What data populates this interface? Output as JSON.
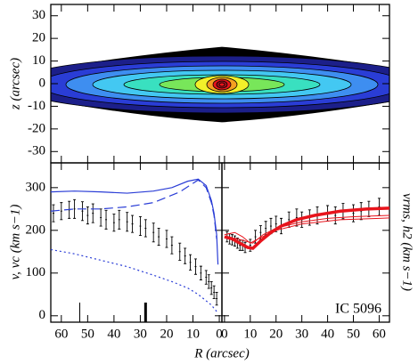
{
  "chart_data": [
    {
      "type": "image",
      "ylabel": "z (arcsec)",
      "ylim": [
        -35,
        35
      ],
      "yticks": [
        -30,
        -20,
        -10,
        0,
        10,
        20,
        30
      ]
    },
    {
      "type": "line",
      "ylabel": "v, vc (km s−1)",
      "xlabel": "R (arcsec)",
      "xlim": [
        64,
        -1
      ],
      "xticks": [
        60,
        50,
        40,
        30,
        20,
        10,
        0
      ],
      "ylim": [
        -15,
        358
      ],
      "yticks": [
        0,
        100,
        200,
        300
      ],
      "series": [
        {
          "color": "#000000",
          "style": "errorbar",
          "x": [
            63,
            60,
            57,
            55,
            52,
            50,
            48,
            45,
            43,
            40,
            38,
            35,
            33,
            30,
            28,
            25,
            23,
            20,
            18,
            15,
            13,
            11,
            9,
            7,
            5,
            4,
            3,
            2,
            1
          ],
          "values": [
            240,
            245,
            248,
            250,
            245,
            235,
            240,
            230,
            225,
            218,
            225,
            220,
            215,
            210,
            205,
            195,
            185,
            180,
            165,
            150,
            140,
            125,
            115,
            100,
            90,
            80,
            65,
            55,
            40
          ],
          "errors": [
            20,
            20,
            20,
            22,
            22,
            20,
            22,
            20,
            22,
            20,
            22,
            22,
            20,
            22,
            20,
            22,
            20,
            20,
            20,
            20,
            18,
            18,
            18,
            16,
            16,
            16,
            15,
            15,
            15
          ]
        },
        {
          "color": "#2a3dd6",
          "style": "solid",
          "x": [
            64,
            55,
            45,
            35,
            25,
            18,
            12,
            8,
            5,
            3,
            2,
            1,
            0.5
          ],
          "values": [
            290,
            292,
            290,
            287,
            292,
            300,
            315,
            320,
            305,
            270,
            240,
            190,
            120
          ]
        },
        {
          "color": "#2a3dd6",
          "style": "dashed",
          "x": [
            64,
            55,
            45,
            35,
            25,
            15,
            10,
            8,
            5,
            3,
            2,
            1
          ],
          "values": [
            245,
            250,
            250,
            255,
            265,
            290,
            310,
            318,
            300,
            265,
            235,
            180
          ]
        },
        {
          "color": "#2a3dd6",
          "style": "dotted",
          "x": [
            64,
            55,
            45,
            35,
            25,
            18,
            12,
            8,
            5,
            3,
            1
          ],
          "values": [
            155,
            145,
            130,
            115,
            95,
            80,
            65,
            50,
            35,
            25,
            10
          ]
        }
      ],
      "markers": [
        53,
        28
      ],
      "marker_styles": [
        "thin",
        "thick"
      ]
    },
    {
      "type": "line",
      "ylabel": "vrms, h2 (km s−1)",
      "annotation": "IC 5096",
      "xlim": [
        -1,
        64
      ],
      "xticks": [
        0,
        10,
        20,
        30,
        40,
        50,
        60
      ],
      "ylim": [
        -15,
        358
      ],
      "series": [
        {
          "color": "#000000",
          "style": "errorbar",
          "x": [
            1,
            2,
            3,
            4,
            5,
            6,
            7,
            8,
            10,
            12,
            14,
            16,
            18,
            20,
            22,
            25,
            28,
            30,
            33,
            36,
            40,
            43,
            46,
            50,
            53,
            56,
            60
          ],
          "values": [
            185,
            180,
            178,
            175,
            170,
            165,
            165,
            160,
            165,
            185,
            195,
            205,
            210,
            215,
            210,
            225,
            230,
            225,
            230,
            235,
            240,
            235,
            245,
            240,
            245,
            250,
            255
          ],
          "errors": [
            12,
            12,
            12,
            12,
            12,
            12,
            12,
            12,
            14,
            15,
            16,
            16,
            18,
            18,
            18,
            18,
            20,
            18,
            18,
            20,
            18,
            20,
            18,
            20,
            20,
            18,
            20
          ]
        },
        {
          "color": "#e8141c",
          "style": "thin",
          "x": [
            0,
            5,
            8,
            11,
            15,
            20,
            30,
            40,
            50,
            64
          ],
          "values": [
            185,
            180,
            175,
            170,
            190,
            205,
            220,
            228,
            232,
            235
          ]
        },
        {
          "color": "#e8141c",
          "style": "thin",
          "x": [
            0,
            4,
            7,
            10,
            13,
            20,
            30,
            45,
            60,
            64
          ],
          "values": [
            190,
            195,
            185,
            170,
            180,
            200,
            215,
            225,
            228,
            229
          ]
        },
        {
          "color": "#e8141c",
          "style": "thick",
          "x": [
            0,
            3,
            6,
            9,
            11,
            14,
            18,
            22,
            28,
            35,
            45,
            55,
            64
          ],
          "values": [
            185,
            180,
            170,
            160,
            158,
            175,
            195,
            210,
            225,
            235,
            245,
            250,
            252
          ]
        }
      ]
    }
  ]
}
